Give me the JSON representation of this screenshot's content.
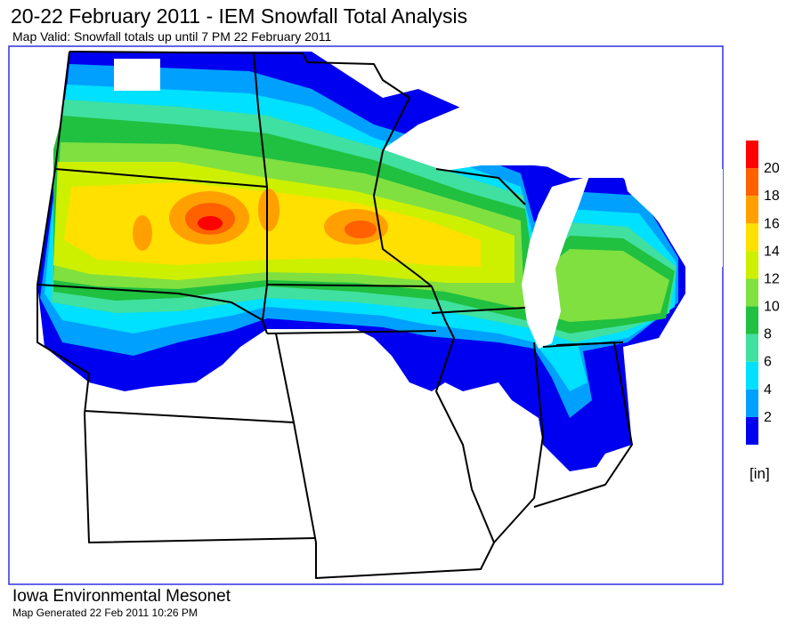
{
  "header": {
    "title": "20-22 February 2011 - IEM Snowfall Total Analysis",
    "subtitle": "Map Valid: Snowfall totals up until 7 PM 22 February 2011"
  },
  "legend": {
    "labels": [
      2,
      4,
      6,
      8,
      10,
      12,
      14,
      16,
      18,
      20
    ],
    "unit": "[in]",
    "colors": [
      "#0000f0",
      "#00a0ff",
      "#00e0ff",
      "#40e0a0",
      "#20c040",
      "#80e040",
      "#ccf000",
      "#ffe000",
      "#ffa000",
      "#ff6000",
      "#ff0000"
    ]
  },
  "footer": {
    "organization": "Iowa Environmental Mesonet",
    "generated": "Map Generated 22 Feb 2011 10:26 PM"
  }
}
